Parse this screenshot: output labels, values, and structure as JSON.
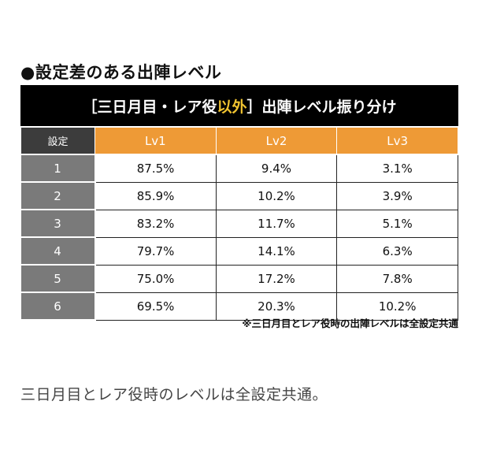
{
  "section_title": "●設定差のある出陣レベル",
  "banner": {
    "prefix": "［三日月目・レア役",
    "accent_text": "以外",
    "suffix": "］出陣レベル振り分け",
    "accent_color": "#f0c330"
  },
  "table": {
    "columns": [
      "設定",
      "Lv1",
      "Lv2",
      "Lv3"
    ],
    "rows": [
      {
        "setting": "1",
        "lv1": "87.5%",
        "lv2": "9.4%",
        "lv3": "3.1%"
      },
      {
        "setting": "2",
        "lv1": "85.9%",
        "lv2": "10.2%",
        "lv3": "3.9%"
      },
      {
        "setting": "3",
        "lv1": "83.2%",
        "lv2": "11.7%",
        "lv3": "5.1%"
      },
      {
        "setting": "4",
        "lv1": "79.7%",
        "lv2": "14.1%",
        "lv3": "6.3%"
      },
      {
        "setting": "5",
        "lv1": "75.0%",
        "lv2": "17.2%",
        "lv3": "7.8%"
      },
      {
        "setting": "6",
        "lv1": "69.5%",
        "lv2": "20.3%",
        "lv3": "10.2%"
      }
    ]
  },
  "footnote": "※三日月目とレア役時の出陣レベルは全設定共通",
  "caption": "三日月目とレア役時のレベルは全設定共通。",
  "colors": {
    "header_orange": "#ee9a36",
    "row_header_gray": "#7a7a7a",
    "corner_dark": "#3c3c3c",
    "banner_black": "#000000"
  }
}
